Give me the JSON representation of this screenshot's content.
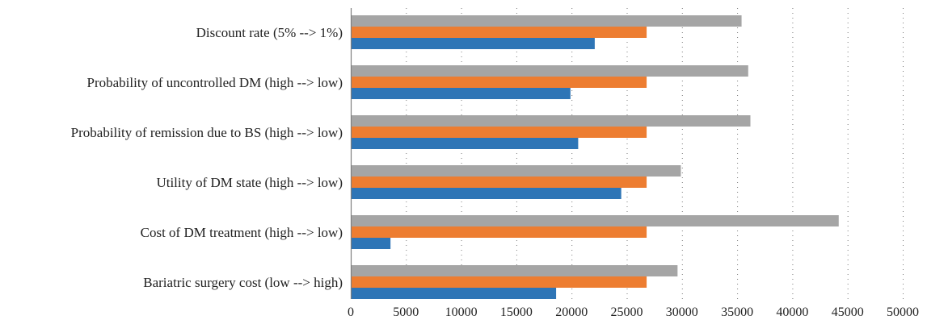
{
  "chart_data": {
    "type": "bar",
    "orientation": "horizontal",
    "title": "",
    "xlabel": "",
    "ylabel": "",
    "xlim": [
      0,
      50000
    ],
    "x_ticks": [
      0,
      5000,
      10000,
      15000,
      20000,
      25000,
      30000,
      35000,
      40000,
      45000,
      50000
    ],
    "x_tick_labels": [
      "0",
      "5000",
      "10000",
      "15000",
      "20000",
      "25000",
      "30000",
      "35000",
      "40000",
      "45000",
      "50000"
    ],
    "grid": "vertical dotted",
    "legend": "none",
    "categories": [
      "Discount rate (5% --> 1%)",
      "Probability of uncontrolled DM (high --> low)",
      "Probability of remission due to BS (high --> low)",
      "Utility of DM state (high --> low)",
      "Cost of DM treatment (high --> low)",
      "Bariatric surgery cost (low --> high)"
    ],
    "series": [
      {
        "color": "#a5a5a5",
        "values": [
          35400,
          36000,
          36200,
          29900,
          44200,
          29600
        ]
      },
      {
        "color": "#ed7d31",
        "values": [
          26800,
          26800,
          26800,
          26800,
          26800,
          26800
        ]
      },
      {
        "color": "#2e75b6",
        "values": [
          22100,
          19900,
          20600,
          24500,
          3600,
          18600
        ]
      }
    ]
  }
}
